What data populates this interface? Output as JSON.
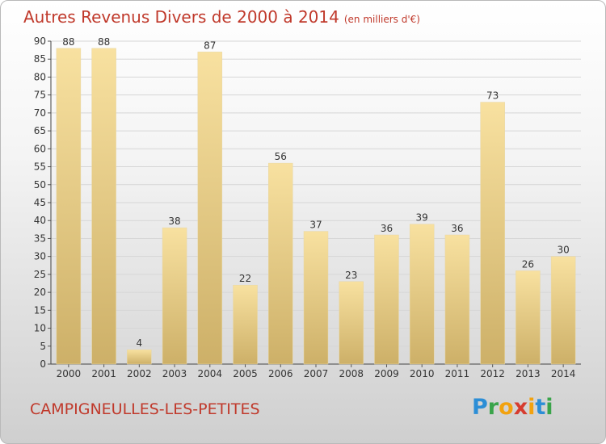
{
  "title": "Autres Revenus Divers de 2000 à 2014",
  "unit_note": "(en milliers d'€)",
  "commune": "CAMPIGNEULLES-LES-PETITES",
  "logo": {
    "text": "Proxiti",
    "letters": [
      "P",
      "r",
      "o",
      "x",
      "i",
      "t",
      "i"
    ],
    "colors": [
      "#2c8ed6",
      "#3aa44a",
      "#f2a20f",
      "#d63c2f",
      "#f2a20f",
      "#2c8ed6",
      "#3aa44a"
    ]
  },
  "colors": {
    "accent": "#c0392b",
    "bar_light": "#f8e1a0",
    "bar_dark": "#cdb068",
    "grid": "#d6d6d6",
    "axis_text": "#333333"
  },
  "chart_data": {
    "type": "bar",
    "title": "Autres Revenus Divers de 2000 à 2014",
    "subtitle": "(en milliers d'€)",
    "categories": [
      "2000",
      "2001",
      "2002",
      "2003",
      "2004",
      "2005",
      "2006",
      "2007",
      "2008",
      "2009",
      "2010",
      "2011",
      "2012",
      "2013",
      "2014"
    ],
    "values": [
      88,
      88,
      4,
      38,
      87,
      22,
      56,
      37,
      23,
      36,
      39,
      36,
      73,
      26,
      30
    ],
    "data_labels": [
      "88",
      "88",
      "4",
      "38",
      "87",
      "22",
      "56",
      "37",
      "23",
      "36",
      "39",
      "36",
      "73",
      "26",
      "30"
    ],
    "ylim": [
      0,
      90
    ],
    "yticks": [
      0,
      5,
      10,
      15,
      20,
      25,
      30,
      35,
      40,
      45,
      50,
      55,
      60,
      65,
      70,
      75,
      80,
      85,
      90
    ],
    "ytick_labels": [
      "0",
      "5",
      "10",
      "15",
      "20",
      "25",
      "30",
      "35",
      "40",
      "45",
      "50",
      "55",
      "60",
      "65",
      "70",
      "75",
      "80",
      "85",
      "90"
    ],
    "xlabel": "",
    "ylabel": "",
    "grid": true,
    "legend": "none"
  }
}
